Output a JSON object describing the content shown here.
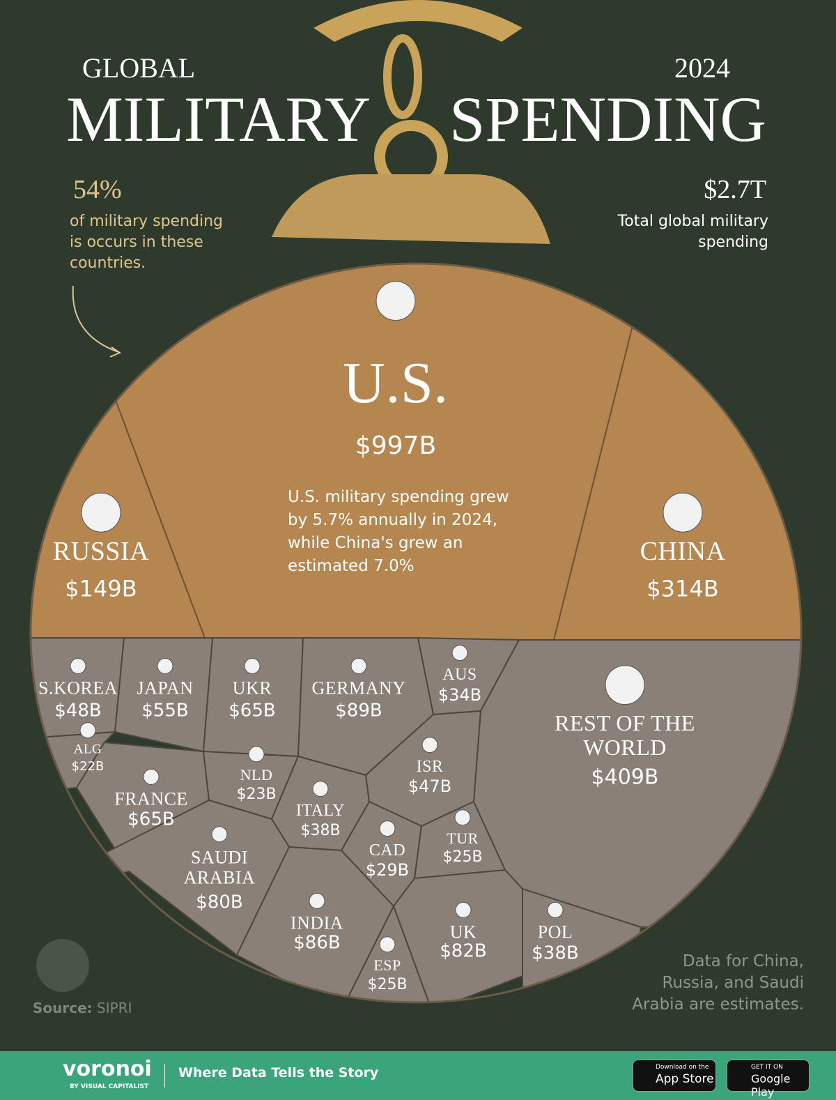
{
  "chart_data": {
    "type": "voronoi",
    "kicker_left": "GLOBAL",
    "title_left": "MILITARY",
    "kicker_right": "2024",
    "title_right": "SPENDING",
    "share_stat": "54%",
    "share_text": "of military spending is occurs in these countries.",
    "total_stat": "$2.7T",
    "total_text": "Total global military spending",
    "description": "U.S. military spending grew by 5.7% annually in 2024, while China's grew an estimated 7.0%",
    "note": "Data for China, Russia, and Saudi Arabia are estimates.",
    "source_label": "Source:",
    "source": "SIPRI",
    "categories": [
      "U.S.",
      "RUSSIA",
      "CHINA",
      "S.KOREA",
      "JAPAN",
      "UKR",
      "GERMANY",
      "AUS",
      "ALG",
      "FRANCE",
      "NLD",
      "ITALY",
      "ISR",
      "SAUDI ARABIA",
      "CAD",
      "TUR",
      "INDIA",
      "ESP",
      "UK",
      "POL",
      "REST OF THE WORLD"
    ],
    "values": [
      997,
      149,
      314,
      48,
      55,
      65,
      89,
      34,
      22,
      65,
      23,
      38,
      47,
      80,
      29,
      25,
      86,
      25,
      82,
      38,
      409
    ],
    "value_labels": [
      "$997B",
      "$149B",
      "$314B",
      "$48B",
      "$55B",
      "$65B",
      "$89B",
      "$34B",
      "$22B",
      "$65B",
      "$23B",
      "$38B",
      "$47B",
      "$80B",
      "$29B",
      "$25B",
      "$86B",
      "$25B",
      "$82B",
      "$38B",
      "$409B"
    ],
    "colors": {
      "top": "#b5864f",
      "bottom": "#8a8078"
    }
  },
  "footer": {
    "brand": "voronoi",
    "brand_sub": "BY VISUAL CAPITALIST",
    "tagline": "Where Data Tells the Story",
    "app_small": "Download on the",
    "app": "App Store",
    "play_small": "GET IT ON",
    "play": "Google Play"
  }
}
